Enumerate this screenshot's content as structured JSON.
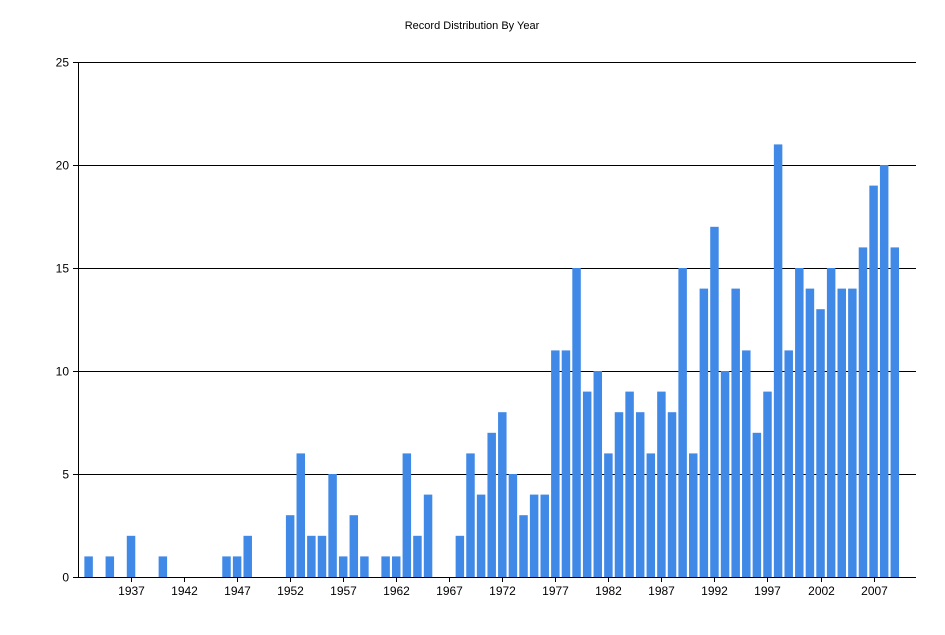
{
  "chart_data": {
    "type": "bar",
    "title": "Record Distribution By Year",
    "xlabel": "",
    "ylabel": "",
    "ylim": [
      0,
      25
    ],
    "yticks": [
      0,
      5,
      10,
      15,
      20,
      25
    ],
    "x_range": [
      1932,
      2011
    ],
    "xticks": [
      1937,
      1942,
      1947,
      1952,
      1957,
      1962,
      1967,
      1972,
      1977,
      1982,
      1987,
      1992,
      1997,
      2002,
      2007
    ],
    "grid": "horizontal",
    "bar_color": "#4189E6",
    "x": [
      1933,
      1934,
      1935,
      1936,
      1937,
      1938,
      1939,
      1940,
      1941,
      1942,
      1943,
      1944,
      1945,
      1946,
      1947,
      1948,
      1949,
      1950,
      1951,
      1952,
      1953,
      1954,
      1955,
      1956,
      1957,
      1958,
      1959,
      1960,
      1961,
      1962,
      1963,
      1964,
      1965,
      1966,
      1967,
      1968,
      1969,
      1970,
      1971,
      1972,
      1973,
      1974,
      1975,
      1976,
      1977,
      1978,
      1979,
      1980,
      1981,
      1982,
      1983,
      1984,
      1985,
      1986,
      1987,
      1988,
      1989,
      1990,
      1991,
      1992,
      1993,
      1994,
      1995,
      1996,
      1997,
      1998,
      1999,
      2000,
      2001,
      2002,
      2003,
      2004,
      2005,
      2006,
      2007,
      2008,
      2009,
      2010
    ],
    "values": [
      1,
      0,
      1,
      0,
      2,
      0,
      0,
      1,
      0,
      0,
      0,
      0,
      0,
      1,
      1,
      2,
      0,
      0,
      0,
      3,
      6,
      2,
      2,
      5,
      1,
      3,
      1,
      0,
      1,
      1,
      6,
      2,
      4,
      0,
      0,
      2,
      6,
      4,
      7,
      8,
      5,
      3,
      4,
      4,
      11,
      11,
      15,
      9,
      10,
      6,
      8,
      9,
      8,
      6,
      9,
      8,
      15,
      6,
      14,
      17,
      10,
      14,
      11,
      7,
      9,
      21,
      11,
      15,
      14,
      13,
      15,
      14,
      14,
      16,
      19,
      20,
      16,
      0
    ]
  }
}
